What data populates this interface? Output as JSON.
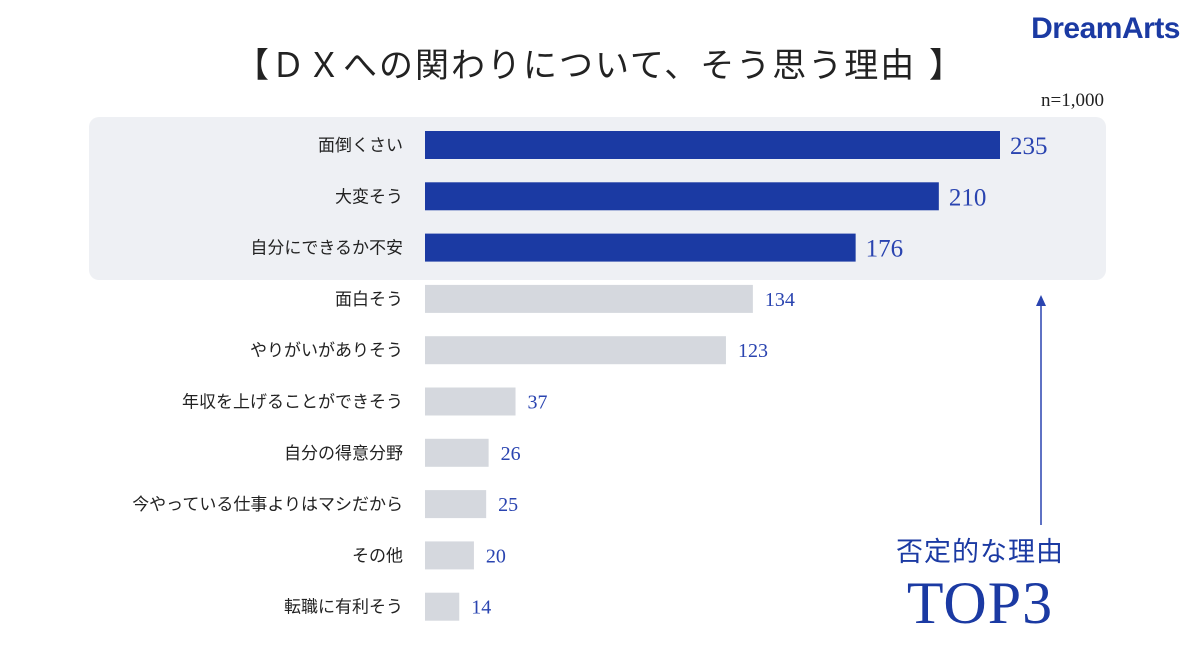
{
  "brand": "DreamArts",
  "chart_data": {
    "type": "bar",
    "orientation": "horizontal",
    "title": "【ＤＸへの関わりについて、そう思う理由 】",
    "note": "n=1,000",
    "categories": [
      "面倒くさい",
      "大変そう",
      "自分にできるか不安",
      "面白そう",
      "やりがいがありそう",
      "年収を上げることができそう",
      "自分の得意分野",
      "今やっている仕事よりはマシだから",
      "その他",
      "転職に有利そう"
    ],
    "values": [
      235,
      210,
      176,
      134,
      123,
      37,
      26,
      25,
      20,
      14
    ],
    "highlight_count": 3,
    "colors": {
      "highlight_bar": "#1b3aa3",
      "other_bar": "#d5d8de",
      "value_text": "#2a44b0"
    }
  },
  "callout": {
    "subtitle": "否定的な理由",
    "main": "TOP3"
  }
}
